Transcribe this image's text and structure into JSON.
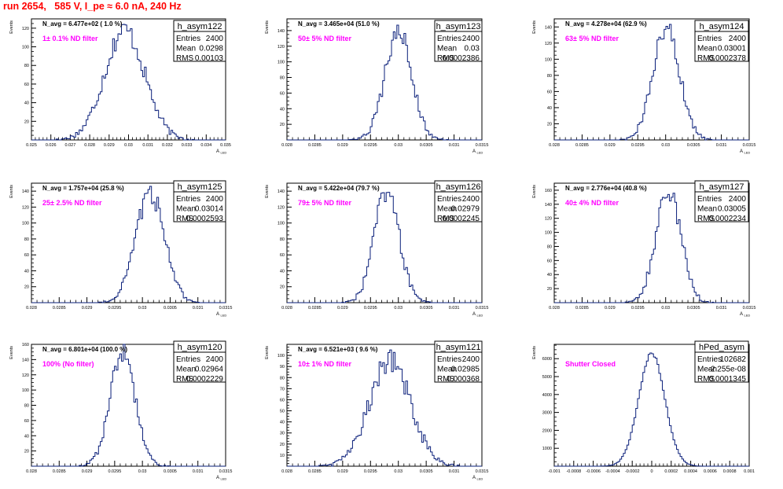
{
  "page": {
    "title": "run 2654,   585 V, I_pe ≈ 6.0 nA, 240 Hz"
  },
  "colors": {
    "hist_line": "#0a1f7a",
    "filter_text": "#ff00ff",
    "title_text": "#ff0000",
    "axis": "#000000"
  },
  "chart_data": [
    {
      "type": "histogram",
      "name": "h_asym122",
      "ylabel": "Events",
      "xlabel": "A_LED",
      "navg": "N_avg = 6.477e+02 ( 1.0 %)",
      "filter": "1± 0.1% ND filter",
      "stats": {
        "entries": "2400",
        "mean": "0.0298",
        "rms": "0.00103"
      },
      "xlim": [
        0.025,
        0.035
      ],
      "xticks": [
        0.025,
        0.026,
        0.027,
        0.028,
        0.029,
        0.03,
        0.031,
        0.032,
        0.033,
        0.034,
        0.035
      ],
      "xtick_labels": [
        "0.025",
        "0.026",
        "0.027",
        "0.028",
        "0.029",
        "0.03",
        "0.031",
        "0.032",
        "0.033",
        "0.034",
        "0.035"
      ],
      "ylim": [
        0,
        130
      ],
      "yticks": [
        0,
        20,
        40,
        60,
        80,
        100,
        120
      ],
      "ytick_labels": [
        "",
        "20",
        "40",
        "60",
        "80",
        "100",
        "120"
      ],
      "mu": 0.0298,
      "sigma": 0.00103,
      "peak": 118,
      "bins": 110
    },
    {
      "type": "histogram",
      "name": "h_asym123",
      "ylabel": "Events",
      "xlabel": "A_LED",
      "navg": "N_avg = 3.465e+04 (51.0 %)",
      "filter": "50± 5% ND filter",
      "stats": {
        "entries": "2400",
        "mean": "0.03",
        "rms": "0.0002386"
      },
      "xlim": [
        0.028,
        0.0315
      ],
      "xticks": [
        0.028,
        0.0285,
        0.029,
        0.0295,
        0.03,
        0.0305,
        0.031,
        0.0315
      ],
      "xtick_labels": [
        "0.028",
        "0.0285",
        "0.029",
        "0.0295",
        "0.03",
        "0.0305",
        "0.031",
        "0.0315"
      ],
      "ylim": [
        0,
        155
      ],
      "yticks": [
        0,
        20,
        40,
        60,
        80,
        100,
        120,
        140
      ],
      "ytick_labels": [
        "",
        "20",
        "40",
        "60",
        "80",
        "100",
        "120",
        "140"
      ],
      "mu": 0.03,
      "sigma": 0.0002386,
      "peak": 140,
      "bins": 110
    },
    {
      "type": "histogram",
      "name": "h_asym124",
      "ylabel": "Events",
      "xlabel": "A_LED",
      "navg": "N_avg = 4.278e+04 (62.9 %)",
      "filter": "63± 5% ND filter",
      "stats": {
        "entries": "2400",
        "mean": "0.03001",
        "rms": "0.0002378"
      },
      "xlim": [
        0.028,
        0.0315
      ],
      "xticks": [
        0.028,
        0.0285,
        0.029,
        0.0295,
        0.03,
        0.0305,
        0.031,
        0.0315
      ],
      "xtick_labels": [
        "0.028",
        "0.0285",
        "0.029",
        "0.0295",
        "0.03",
        "0.0305",
        "0.031",
        "0.0315"
      ],
      "ylim": [
        0,
        150
      ],
      "yticks": [
        0,
        20,
        40,
        60,
        80,
        100,
        120,
        140
      ],
      "ytick_labels": [
        "",
        "20",
        "40",
        "60",
        "80",
        "100",
        "120",
        "140"
      ],
      "mu": 0.03001,
      "sigma": 0.0002378,
      "peak": 140,
      "bins": 110
    },
    {
      "type": "histogram",
      "name": "h_asym125",
      "ylabel": "Events",
      "xlabel": "A_LED",
      "navg": "N_avg = 1.757e+04 (25.8 %)",
      "filter": "25± 2.5% ND filter",
      "stats": {
        "entries": "2400",
        "mean": "0.03014",
        "rms": "0.0002593"
      },
      "xlim": [
        0.028,
        0.0315
      ],
      "xticks": [
        0.028,
        0.0285,
        0.029,
        0.0295,
        0.03,
        0.0305,
        0.031,
        0.0315
      ],
      "xtick_labels": [
        "0.028",
        "0.0285",
        "0.029",
        "0.0295",
        "0.03",
        "0.0305",
        "0.031",
        "0.0315"
      ],
      "ylim": [
        0,
        150
      ],
      "yticks": [
        0,
        20,
        40,
        60,
        80,
        100,
        120,
        140
      ],
      "ytick_labels": [
        "",
        "20",
        "40",
        "60",
        "80",
        "100",
        "120",
        "140"
      ],
      "mu": 0.03014,
      "sigma": 0.0002593,
      "peak": 138,
      "bins": 110
    },
    {
      "type": "histogram",
      "name": "h_asym126",
      "ylabel": "Events",
      "xlabel": "A_LED",
      "navg": "N_avg = 5.422e+04 (79.7 %)",
      "filter": "79± 5% ND filter",
      "stats": {
        "entries": "2400",
        "mean": "0.02979",
        "rms": "0.0002245"
      },
      "xlim": [
        0.028,
        0.0315
      ],
      "xticks": [
        0.028,
        0.0285,
        0.029,
        0.0295,
        0.03,
        0.0305,
        0.031,
        0.0315
      ],
      "xtick_labels": [
        "0.028",
        "0.0285",
        "0.029",
        "0.0295",
        "0.03",
        "0.0305",
        "0.031",
        "0.0315"
      ],
      "ylim": [
        0,
        150
      ],
      "yticks": [
        0,
        20,
        40,
        60,
        80,
        100,
        120,
        140
      ],
      "ytick_labels": [
        "",
        "20",
        "40",
        "60",
        "80",
        "100",
        "120",
        "140"
      ],
      "mu": 0.02979,
      "sigma": 0.0002245,
      "peak": 140,
      "bins": 110
    },
    {
      "type": "histogram",
      "name": "h_asym127",
      "ylabel": "Events",
      "xlabel": "A_LED",
      "navg": "N_avg = 2.776e+04 (40.8 %)",
      "filter": "40± 4% ND filter",
      "stats": {
        "entries": "2400",
        "mean": "0.03005",
        "rms": "0.0002234"
      },
      "xlim": [
        0.028,
        0.0315
      ],
      "xticks": [
        0.028,
        0.0285,
        0.029,
        0.0295,
        0.03,
        0.0305,
        0.031,
        0.0315
      ],
      "xtick_labels": [
        "0.028",
        "0.0285",
        "0.029",
        "0.0295",
        "0.03",
        "0.0305",
        "0.031",
        "0.0315"
      ],
      "ylim": [
        0,
        170
      ],
      "yticks": [
        0,
        20,
        40,
        60,
        80,
        100,
        120,
        140,
        160
      ],
      "ytick_labels": [
        "",
        "20",
        "40",
        "60",
        "80",
        "100",
        "120",
        "140",
        "160"
      ],
      "mu": 0.03005,
      "sigma": 0.0002234,
      "peak": 160,
      "bins": 110
    },
    {
      "type": "histogram",
      "name": "h_asym120",
      "ylabel": "Events",
      "xlabel": "A_LED",
      "navg": "N_avg = 6.801e+04 (100.0 %)",
      "filter": "100% (No filter)",
      "stats": {
        "entries": "2400",
        "mean": "0.02964",
        "rms": "0.0002229"
      },
      "xlim": [
        0.028,
        0.0315
      ],
      "xticks": [
        0.028,
        0.0285,
        0.029,
        0.0295,
        0.03,
        0.0305,
        0.031,
        0.0315
      ],
      "xtick_labels": [
        "0.028",
        "0.0285",
        "0.029",
        "0.0295",
        "0.03",
        "0.0305",
        "0.031",
        "0.0315"
      ],
      "ylim": [
        0,
        160
      ],
      "yticks": [
        0,
        20,
        40,
        60,
        80,
        100,
        120,
        140,
        160
      ],
      "ytick_labels": [
        "",
        "20",
        "40",
        "60",
        "80",
        "100",
        "120",
        "140",
        "160"
      ],
      "mu": 0.02964,
      "sigma": 0.0002229,
      "peak": 150,
      "bins": 110
    },
    {
      "type": "histogram",
      "name": "h_asym121",
      "ylabel": "Events",
      "xlabel": "A_LED",
      "navg": "N_avg = 6.521e+03 ( 9.6 %)",
      "filter": "10± 1% ND filter",
      "stats": {
        "entries": "2400",
        "mean": "0.02985",
        "rms": "0.000368"
      },
      "xlim": [
        0.028,
        0.0315
      ],
      "xticks": [
        0.028,
        0.0285,
        0.029,
        0.0295,
        0.03,
        0.0305,
        0.031,
        0.0315
      ],
      "xtick_labels": [
        "0.028",
        "0.0285",
        "0.029",
        "0.0295",
        "0.03",
        "0.0305",
        "0.031",
        "0.0315"
      ],
      "ylim": [
        0,
        110
      ],
      "yticks": [
        0,
        10,
        20,
        30,
        40,
        50,
        60,
        70,
        80,
        90,
        100
      ],
      "ytick_labels": [
        "",
        "10",
        "20",
        "30",
        "40",
        "50",
        "60",
        "70",
        "80",
        "90",
        "100"
      ],
      "mu": 0.02985,
      "sigma": 0.000368,
      "peak": 95,
      "bins": 110
    },
    {
      "type": "histogram",
      "name": "hPed_asym",
      "ylabel": "Events",
      "xlabel": "",
      "navg": "",
      "filter": "Shutter Closed",
      "stats": {
        "entries": "102682",
        "mean": "-2.255e-08",
        "rms": "0.0001345"
      },
      "xlim": [
        -0.001,
        0.001
      ],
      "xticks": [
        -0.001,
        -0.0008,
        -0.0006,
        -0.0004,
        -0.0002,
        0,
        0.0002,
        0.0004,
        0.0006,
        0.0008,
        0.001
      ],
      "xtick_labels": [
        "-0.001",
        "-0.0008",
        "-0.0006",
        "-0.0004",
        "-0.0002",
        "0",
        "0.0002",
        "0.0004",
        "0.0006",
        "0.0008",
        "0.001"
      ],
      "ylim": [
        0,
        6800
      ],
      "yticks": [
        0,
        1000,
        2000,
        3000,
        4000,
        5000,
        6000
      ],
      "ytick_labels": [
        "",
        "1000",
        "2000",
        "3000",
        "4000",
        "5000",
        "6000"
      ],
      "mu": 0.0,
      "sigma": 0.0001345,
      "peak": 6300,
      "bins": 110
    }
  ]
}
